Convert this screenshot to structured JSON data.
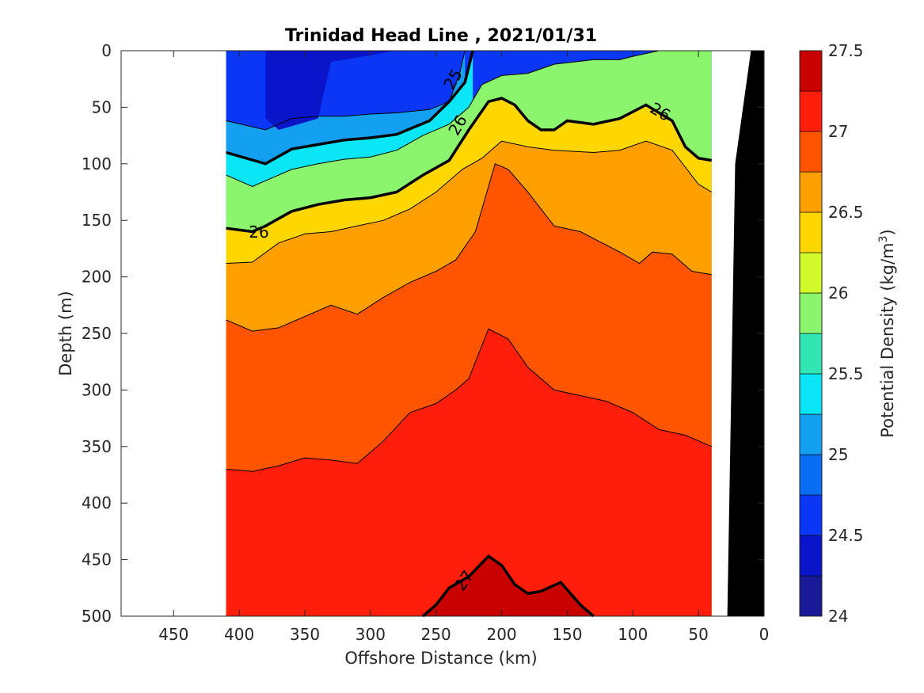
{
  "chart_data": {
    "type": "filled-contour",
    "title": "Trinidad Head Line , 2021/01/31",
    "xlabel": "Offshore Distance (km)",
    "ylabel": "Depth (m)",
    "x_reversed": true,
    "y_reversed": true,
    "xlim": [
      0,
      490
    ],
    "ylim": [
      0,
      500
    ],
    "x_ticks": [
      450,
      400,
      350,
      300,
      250,
      200,
      150,
      100,
      50,
      0
    ],
    "y_ticks": [
      0,
      50,
      100,
      150,
      200,
      250,
      300,
      350,
      400,
      450,
      500
    ],
    "data_extent_km": [
      40,
      410
    ],
    "colorbar": {
      "label_main": "Potential Density (kg/m",
      "label_sup": "3",
      "label_close": ")",
      "range": [
        24,
        27.5
      ],
      "step": 0.25,
      "ticks": [
        24,
        24.5,
        25,
        25.5,
        26,
        26.5,
        27,
        27.5
      ],
      "colors": [
        "#1a1a96",
        "#0a14c8",
        "#0a37f5",
        "#0a6ef5",
        "#14a0f0",
        "#0ae6f5",
        "#32e6b4",
        "#8cf56e",
        "#d2fa28",
        "#ffd700",
        "#ffa000",
        "#ff5500",
        "#ff1e0a",
        "#c80000"
      ]
    },
    "contour_labels": [
      "25",
      "26",
      "26",
      "26",
      "27"
    ],
    "isopycnals": [
      {
        "level": 24.25,
        "x": [
          410,
          390,
          380,
          380,
          370,
          340,
          330,
          280,
          235,
          225
        ],
        "y": [
          0,
          0,
          0,
          60,
          70,
          60,
          10,
          0,
          0,
          0
        ],
        "note": "patch"
      },
      {
        "level": 24.75,
        "x": [
          410,
          380,
          360,
          340,
          320,
          300,
          280,
          255,
          240,
          232,
          228
        ],
        "y": [
          62,
          70,
          60,
          58,
          58,
          56,
          55,
          52,
          45,
          20,
          0
        ]
      },
      {
        "level": 25.0,
        "x": [
          410,
          380,
          360,
          340,
          320,
          300,
          280,
          255,
          240,
          228,
          222
        ],
        "y": [
          90,
          100,
          87,
          83,
          79,
          77,
          74,
          62,
          45,
          28,
          0
        ]
      },
      {
        "level": 25.5,
        "x": [
          410,
          390,
          380,
          360,
          340,
          320,
          300,
          280,
          260,
          240,
          225,
          215,
          200,
          180,
          160,
          130,
          110,
          100,
          80,
          60,
          50,
          40
        ],
        "y": [
          110,
          120,
          115,
          105,
          100,
          96,
          94,
          88,
          75,
          65,
          50,
          30,
          22,
          20,
          12,
          8,
          8,
          5,
          0,
          0,
          0,
          0
        ]
      },
      {
        "level": 26.0,
        "x": [
          410,
          390,
          380,
          360,
          340,
          320,
          300,
          280,
          260,
          240,
          225,
          210,
          200,
          190,
          180,
          170,
          160,
          150,
          130,
          110,
          90,
          70,
          60,
          50,
          40
        ],
        "y": [
          157,
          160,
          155,
          142,
          136,
          132,
          130,
          125,
          110,
          97,
          70,
          45,
          42,
          48,
          62,
          70,
          70,
          62,
          65,
          60,
          48,
          62,
          85,
          95,
          97
        ]
      },
      {
        "level": 26.25,
        "x": [
          410,
          390,
          370,
          350,
          330,
          310,
          290,
          270,
          250,
          230,
          215,
          200,
          180,
          160,
          130,
          110,
          90,
          70,
          50,
          40
        ],
        "y": [
          188,
          187,
          170,
          162,
          160,
          155,
          150,
          140,
          125,
          105,
          95,
          80,
          85,
          88,
          90,
          88,
          80,
          88,
          118,
          125
        ]
      },
      {
        "level": 26.5,
        "x": [
          410,
          390,
          370,
          350,
          330,
          310,
          290,
          270,
          250,
          235,
          220,
          205,
          195,
          180,
          160,
          140,
          110,
          95,
          85,
          70,
          55,
          40
        ],
        "y": [
          238,
          248,
          245,
          235,
          225,
          233,
          218,
          205,
          195,
          185,
          160,
          100,
          105,
          125,
          155,
          160,
          178,
          188,
          178,
          180,
          195,
          198
        ]
      },
      {
        "level": 26.75,
        "x": [
          410,
          390,
          370,
          350,
          330,
          310,
          290,
          270,
          250,
          235,
          225,
          210,
          195,
          180,
          160,
          140,
          120,
          100,
          80,
          60,
          40
        ],
        "y": [
          370,
          372,
          367,
          360,
          362,
          365,
          345,
          320,
          312,
          300,
          290,
          246,
          255,
          280,
          300,
          305,
          310,
          320,
          335,
          340,
          350
        ]
      },
      {
        "level": 27.0,
        "x": [
          260,
          250,
          240,
          225,
          210,
          200,
          190,
          180,
          170,
          155,
          140,
          130
        ],
        "y": [
          500,
          490,
          475,
          465,
          447,
          455,
          472,
          480,
          478,
          470,
          490,
          500
        ]
      }
    ],
    "coastline": {
      "x": [
        0,
        0,
        28,
        22,
        10
      ],
      "y": [
        0,
        500,
        500,
        100,
        0
      ],
      "fill": "#000000"
    }
  }
}
